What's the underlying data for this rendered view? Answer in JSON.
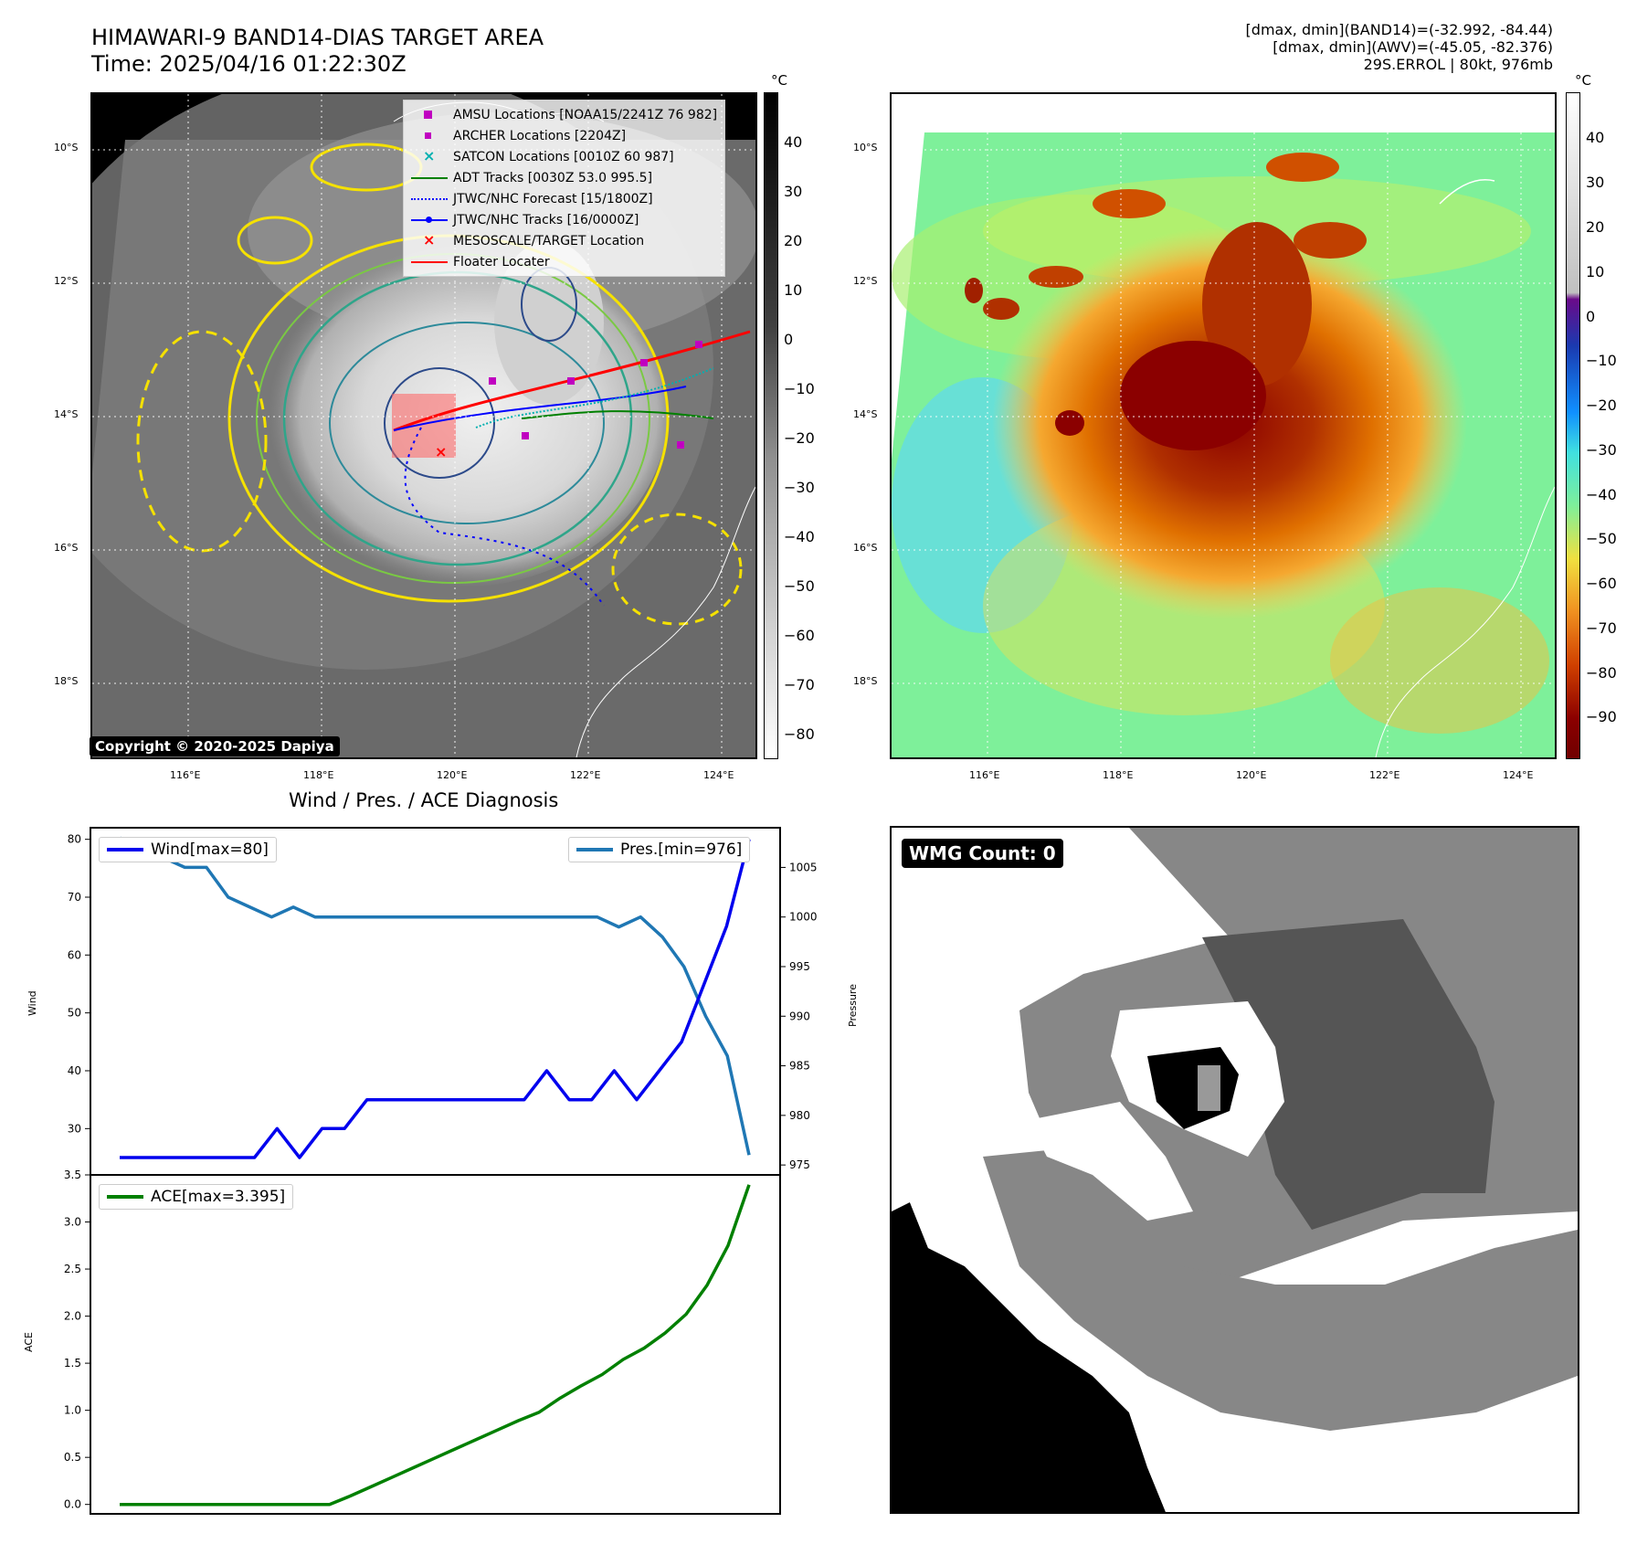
{
  "header": {
    "title_line1": "HIMAWARI-9 BAND14-DIAS TARGET AREA",
    "title_line2": "Time: 2025/04/16 01:22:30Z",
    "info_line1": "[dmax, dmin](BAND14)=(-32.992, -84.44)",
    "info_line2": "[dmax, dmin](AWV)=(-45.05, -82.376)",
    "info_line3": "29S.ERROL | 80kt, 976mb"
  },
  "map_axes": {
    "lat_labels": [
      "10°S",
      "12°S",
      "14°S",
      "16°S",
      "18°S"
    ],
    "lon_labels": [
      "116°E",
      "118°E",
      "120°E",
      "122°E",
      "124°E"
    ]
  },
  "left_map": {
    "colorbar_unit": "°C",
    "colorbar_ticks": [
      "40",
      "30",
      "20",
      "10",
      "0",
      "−10",
      "−20",
      "−30",
      "−40",
      "−50",
      "−60",
      "−70",
      "−80"
    ],
    "copyright": "Copyright © 2020-2025 Dapiya",
    "legend": [
      {
        "label": "AMSU Locations [NOAA15/2241Z 76 982]",
        "color": "#c000c0",
        "symbol": "square"
      },
      {
        "label": "ARCHER Locations [2204Z]",
        "color": "#c000c0",
        "symbol": "small-square"
      },
      {
        "label": "SATCON Locations [0010Z 60 987]",
        "color": "#00b0b0",
        "symbol": "x"
      },
      {
        "label": "ADT Tracks [0030Z 53.0 995.5]",
        "color": "#008000",
        "symbol": "line"
      },
      {
        "label": "JTWC/NHC Forecast [15/1800Z]",
        "color": "#0000ff",
        "symbol": "dotted"
      },
      {
        "label": "JTWC/NHC Tracks [16/0000Z]",
        "color": "#0000ff",
        "symbol": "line-dot"
      },
      {
        "label": "MESOSCALE/TARGET Location",
        "color": "#ff0000",
        "symbol": "x"
      },
      {
        "label": "Floater Locater",
        "color": "#ff0000",
        "symbol": "line"
      }
    ]
  },
  "right_map": {
    "colorbar_unit": "°C",
    "colorbar_ticks": [
      "40",
      "30",
      "20",
      "10",
      "0",
      "−10",
      "−20",
      "−30",
      "−40",
      "−50",
      "−60",
      "−70",
      "−80",
      "−90"
    ]
  },
  "diagnosis": {
    "title": "Wind / Pres. / ACE Diagnosis",
    "wind_ylabel": "Wind",
    "pres_ylabel": "Pressure",
    "ace_ylabel": "ACE",
    "wind_legend": "Wind[max=80]",
    "pres_legend": "Pres.[min=976]",
    "ace_legend": "ACE[max=3.395]"
  },
  "colors": {
    "wind": "#0000ee",
    "pressure": "#1f77b4",
    "ace": "#008000"
  },
  "chart_data": [
    {
      "type": "line",
      "title": "Wind / Pres. / ACE Diagnosis",
      "xlabel": "",
      "ylabel": "Wind",
      "ylim": [
        22,
        82
      ],
      "yticks": [
        30,
        40,
        50,
        60,
        70,
        80
      ],
      "series": [
        {
          "name": "Wind[max=80]",
          "values": [
            25,
            25,
            25,
            25,
            25,
            25,
            25,
            30,
            25,
            30,
            30,
            35,
            35,
            35,
            35,
            35,
            35,
            35,
            35,
            40,
            35,
            35,
            40,
            35,
            40,
            45,
            55,
            65,
            80
          ]
        }
      ]
    },
    {
      "type": "line",
      "ylabel": "Pressure",
      "ylim": [
        974,
        1009
      ],
      "yticks": [
        975,
        980,
        985,
        990,
        995,
        1000,
        1005
      ],
      "series": [
        {
          "name": "Pres.[min=976]",
          "values": [
            1008,
            1006,
            1006,
            1005,
            1005,
            1002,
            1001,
            1000,
            1001,
            1000,
            1000,
            1000,
            1000,
            1000,
            1000,
            1000,
            1000,
            1000,
            1000,
            1000,
            1000,
            1000,
            1000,
            999,
            1000,
            998,
            995,
            990,
            986,
            976
          ]
        }
      ]
    },
    {
      "type": "line",
      "ylabel": "ACE",
      "ylim": [
        -0.1,
        3.5
      ],
      "yticks": [
        0.0,
        0.5,
        1.0,
        1.5,
        2.0,
        2.5,
        3.0,
        3.5
      ],
      "series": [
        {
          "name": "ACE[max=3.395]",
          "values": [
            0,
            0,
            0,
            0,
            0,
            0,
            0,
            0,
            0,
            0,
            0,
            0.09,
            0.19,
            0.29,
            0.39,
            0.49,
            0.59,
            0.69,
            0.79,
            0.89,
            0.98,
            1.13,
            1.26,
            1.38,
            1.54,
            1.66,
            1.82,
            2.02,
            2.33,
            2.75,
            3.395
          ]
        }
      ]
    }
  ]
}
